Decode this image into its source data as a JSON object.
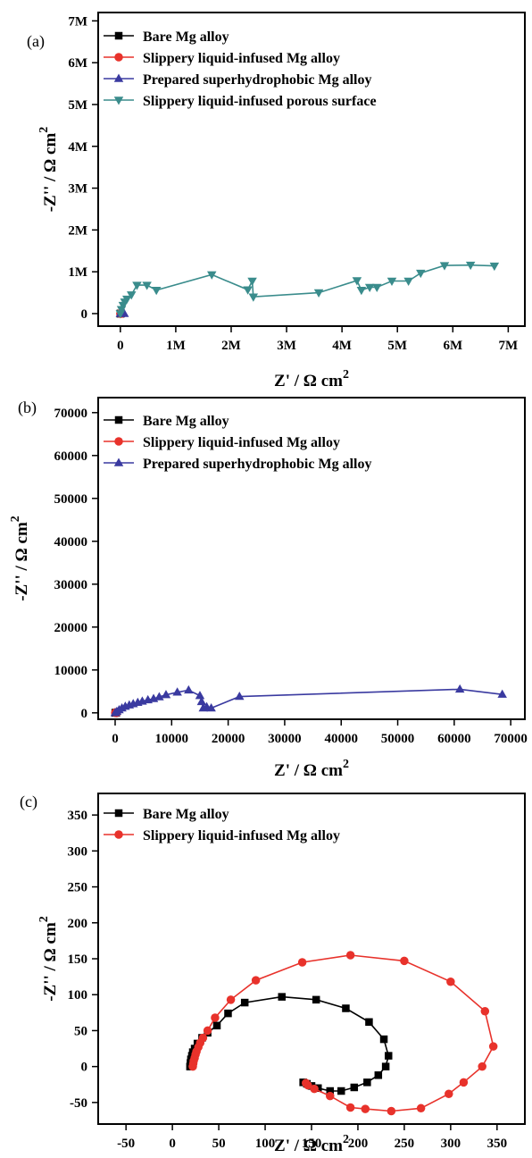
{
  "colors": {
    "bare": "#000000",
    "slippery": "#e8322b",
    "superhydrophobic": "#3a3aa0",
    "porous": "#3a8c8c"
  },
  "chart_data": [
    {
      "id": "a",
      "panel_label": "(a)",
      "type": "scatter",
      "xlabel": "Z' / Ω cm",
      "ylabel": "-Z'' / Ω cm",
      "unit_superscript": "2",
      "xlim": [
        -0.4,
        7.3
      ],
      "ylim": [
        -0.3,
        7.2
      ],
      "xticks": [
        {
          "v": 0,
          "label": "0"
        },
        {
          "v": 1,
          "label": "1M"
        },
        {
          "v": 2,
          "label": "2M"
        },
        {
          "v": 3,
          "label": "3M"
        },
        {
          "v": 4,
          "label": "4M"
        },
        {
          "v": 5,
          "label": "5M"
        },
        {
          "v": 6,
          "label": "6M"
        },
        {
          "v": 7,
          "label": "7M"
        }
      ],
      "yticks": [
        {
          "v": 0,
          "label": "0"
        },
        {
          "v": 1,
          "label": "1M"
        },
        {
          "v": 2,
          "label": "2M"
        },
        {
          "v": 3,
          "label": "3M"
        },
        {
          "v": 4,
          "label": "4M"
        },
        {
          "v": 5,
          "label": "5M"
        },
        {
          "v": 6,
          "label": "6M"
        },
        {
          "v": 7,
          "label": "7M"
        }
      ],
      "series": [
        {
          "name": "Bare Mg alloy",
          "color_key": "bare",
          "marker": "square",
          "x": [
            0.0,
            0.0,
            0.01
          ],
          "y": [
            0.0,
            0.0,
            0.0
          ]
        },
        {
          "name": "Slippery liquid-infused Mg alloy",
          "color_key": "slippery",
          "marker": "circle",
          "x": [
            0.0,
            0.01,
            0.02
          ],
          "y": [
            0.0,
            0.01,
            0.0
          ]
        },
        {
          "name": "Prepared superhydrophobic Mg alloy",
          "color_key": "superhydrophobic",
          "marker": "triangle-up",
          "x": [
            0.0,
            0.03,
            0.07
          ],
          "y": [
            0.0,
            0.01,
            0.0
          ]
        },
        {
          "name": "Slippery liquid-infused porous surface",
          "color_key": "porous",
          "marker": "triangle-down",
          "x": [
            0.0,
            0.02,
            0.05,
            0.08,
            0.12,
            0.2,
            0.3,
            0.48,
            0.65,
            1.65,
            2.3,
            2.38,
            2.4,
            3.58,
            4.27,
            4.35,
            4.5,
            4.63,
            4.9,
            5.2,
            5.42,
            5.85,
            6.32,
            6.75
          ],
          "y": [
            0.0,
            0.1,
            0.2,
            0.28,
            0.35,
            0.45,
            0.68,
            0.68,
            0.56,
            0.93,
            0.57,
            0.78,
            0.4,
            0.5,
            0.79,
            0.56,
            0.63,
            0.63,
            0.78,
            0.78,
            0.97,
            1.15,
            1.16,
            1.14
          ]
        }
      ],
      "legend_position": "top-left"
    },
    {
      "id": "b",
      "panel_label": "(b)",
      "type": "scatter",
      "xlabel": "Z' / Ω cm",
      "ylabel": "-Z'' / Ω cm",
      "unit_superscript": "2",
      "xlim": [
        -3000,
        72500
      ],
      "ylim": [
        -1500,
        73500
      ],
      "xticks": [
        {
          "v": 0,
          "label": "0"
        },
        {
          "v": 10000,
          "label": "10000"
        },
        {
          "v": 20000,
          "label": "20000"
        },
        {
          "v": 30000,
          "label": "30000"
        },
        {
          "v": 40000,
          "label": "40000"
        },
        {
          "v": 50000,
          "label": "50000"
        },
        {
          "v": 60000,
          "label": "60000"
        },
        {
          "v": 70000,
          "label": "70000"
        }
      ],
      "yticks": [
        {
          "v": 0,
          "label": "0"
        },
        {
          "v": 10000,
          "label": "10000"
        },
        {
          "v": 20000,
          "label": "20000"
        },
        {
          "v": 30000,
          "label": "30000"
        },
        {
          "v": 40000,
          "label": "40000"
        },
        {
          "v": 50000,
          "label": "50000"
        },
        {
          "v": 60000,
          "label": "60000"
        },
        {
          "v": 70000,
          "label": "70000"
        }
      ],
      "series": [
        {
          "name": "Bare Mg alloy",
          "color_key": "bare",
          "marker": "square",
          "x": [
            20,
            60,
            120,
            200
          ],
          "y": [
            0,
            30,
            60,
            20
          ]
        },
        {
          "name": "Slippery liquid-infused Mg alloy",
          "color_key": "slippery",
          "marker": "circle",
          "x": [
            20,
            80,
            180,
            300,
            250
          ],
          "y": [
            0,
            70,
            140,
            60,
            -40
          ]
        },
        {
          "name": "Prepared superhydrophobic Mg alloy",
          "color_key": "superhydrophobic",
          "marker": "triangle-up",
          "x": [
            0,
            300,
            700,
            1200,
            1800,
            2500,
            3200,
            4000,
            4800,
            5800,
            6800,
            7800,
            9000,
            11000,
            13000,
            15000,
            15300,
            15600,
            16200,
            17000,
            22000,
            61000,
            68500
          ],
          "y": [
            0,
            300,
            700,
            1100,
            1500,
            1800,
            2100,
            2400,
            2700,
            3000,
            3300,
            3700,
            4200,
            4800,
            5300,
            4000,
            2600,
            1100,
            1400,
            1100,
            3800,
            5500,
            4300
          ]
        }
      ],
      "legend_position": "top-left"
    },
    {
      "id": "c",
      "panel_label": "(c)",
      "type": "scatter",
      "xlabel": "Z' / Ω cm",
      "ylabel": "-Z'' / Ω cm",
      "unit_superscript": "2",
      "xlim": [
        -80,
        380
      ],
      "ylim": [
        -80,
        380
      ],
      "xticks": [
        {
          "v": -50,
          "label": "-50"
        },
        {
          "v": 0,
          "label": "0"
        },
        {
          "v": 50,
          "label": "50"
        },
        {
          "v": 100,
          "label": "100"
        },
        {
          "v": 150,
          "label": "150"
        },
        {
          "v": 200,
          "label": "200"
        },
        {
          "v": 250,
          "label": "250"
        },
        {
          "v": 300,
          "label": "300"
        },
        {
          "v": 350,
          "label": "350"
        }
      ],
      "yticks": [
        {
          "v": -50,
          "label": "-50"
        },
        {
          "v": 0,
          "label": "0"
        },
        {
          "v": 50,
          "label": "50"
        },
        {
          "v": 100,
          "label": "100"
        },
        {
          "v": 150,
          "label": "150"
        },
        {
          "v": 200,
          "label": "200"
        },
        {
          "v": 250,
          "label": "250"
        },
        {
          "v": 300,
          "label": "300"
        },
        {
          "v": 350,
          "label": "350"
        }
      ],
      "series": [
        {
          "name": "Bare Mg alloy",
          "color_key": "bare",
          "marker": "square",
          "x": [
            19,
            19.5,
            20,
            21,
            22,
            24,
            27,
            32,
            38,
            48,
            60,
            78,
            118,
            155,
            187,
            212,
            228,
            233,
            230,
            222,
            210,
            196,
            182,
            170,
            157,
            150,
            145,
            141
          ],
          "y": [
            0,
            5,
            10,
            15,
            20,
            25,
            32,
            40,
            47,
            57,
            74,
            89,
            97,
            93,
            81,
            62,
            38,
            15,
            0,
            -12,
            -22,
            -29,
            -34,
            -34,
            -30,
            -27,
            -24,
            -22
          ]
        },
        {
          "name": "Slippery liquid-infused Mg alloy",
          "color_key": "slippery",
          "marker": "circle",
          "x": [
            22,
            22.5,
            23,
            24,
            25,
            26,
            28,
            30,
            33,
            38,
            46,
            63,
            90,
            140,
            192,
            250,
            300,
            337,
            346,
            334,
            314,
            298,
            268,
            236,
            208,
            192,
            170,
            153,
            146,
            144
          ],
          "y": [
            0,
            4,
            8,
            12,
            17,
            21,
            27,
            33,
            40,
            50,
            68,
            93,
            120,
            145,
            155,
            147,
            118,
            77,
            28,
            0,
            -22,
            -38,
            -58,
            -62,
            -59,
            -57,
            -41,
            -31,
            -26,
            -23
          ]
        }
      ],
      "legend_position": "top-left"
    }
  ]
}
